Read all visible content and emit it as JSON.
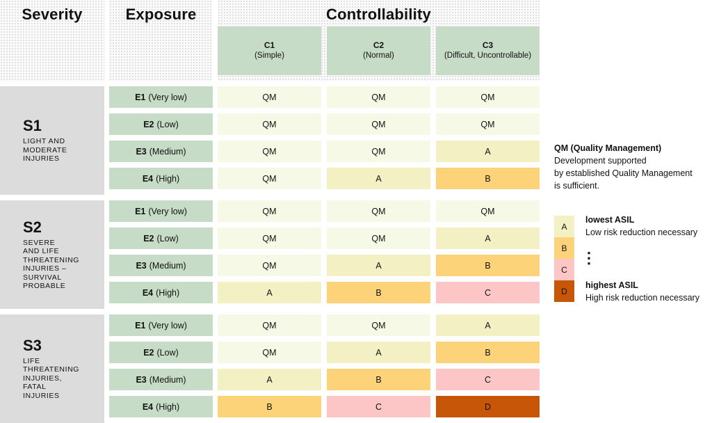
{
  "headers": {
    "severity": "Severity",
    "exposure": "Exposure",
    "controllability": "Controllability"
  },
  "controllability": [
    {
      "code": "C1",
      "label": "(Simple)"
    },
    {
      "code": "C2",
      "label": "(Normal)"
    },
    {
      "code": "C3",
      "label": "(Difficult, Uncontrollable)"
    }
  ],
  "severity_groups": [
    {
      "code": "S1",
      "description": "LIGHT AND\nMODERATE\nINJURIES",
      "rows": [
        {
          "code": "E1",
          "label": "(Very low)",
          "values": [
            "QM",
            "QM",
            "QM"
          ]
        },
        {
          "code": "E2",
          "label": "(Low)",
          "values": [
            "QM",
            "QM",
            "QM"
          ]
        },
        {
          "code": "E3",
          "label": "(Medium)",
          "values": [
            "QM",
            "QM",
            "A"
          ]
        },
        {
          "code": "E4",
          "label": "(High)",
          "values": [
            "QM",
            "A",
            "B"
          ]
        }
      ]
    },
    {
      "code": "S2",
      "description": "SEVERE\nAND LIFE\nTHREATENING\nINJURIES –\nSURVIVAL\nPROBABLE",
      "rows": [
        {
          "code": "E1",
          "label": "(Very low)",
          "values": [
            "QM",
            "QM",
            "QM"
          ]
        },
        {
          "code": "E2",
          "label": "(Low)",
          "values": [
            "QM",
            "QM",
            "A"
          ]
        },
        {
          "code": "E3",
          "label": "(Medium)",
          "values": [
            "QM",
            "A",
            "B"
          ]
        },
        {
          "code": "E4",
          "label": "(High)",
          "values": [
            "A",
            "B",
            "C"
          ]
        }
      ]
    },
    {
      "code": "S3",
      "description": "LIFE\nTHREATENING\nINJURIES,\nFATAL\nINJURIES",
      "rows": [
        {
          "code": "E1",
          "label": "(Very low)",
          "values": [
            "QM",
            "QM",
            "A"
          ]
        },
        {
          "code": "E2",
          "label": "(Low)",
          "values": [
            "QM",
            "A",
            "B"
          ]
        },
        {
          "code": "E3",
          "label": "(Medium)",
          "values": [
            "A",
            "B",
            "C"
          ]
        },
        {
          "code": "E4",
          "label": "(High)",
          "values": [
            "B",
            "C",
            "D"
          ]
        }
      ]
    }
  ],
  "legend": {
    "qm_title": "QM (Quality Management)",
    "qm_lines": [
      "Development supported",
      "by established Quality Management",
      "is sufficient."
    ],
    "levels": [
      "A",
      "B",
      "C",
      "D"
    ],
    "lowest_title": "lowest ASIL",
    "lowest_desc": "Low risk reduction necessary",
    "ellipsis": "⋮",
    "highest_title": "highest ASIL",
    "highest_desc": "High risk reduction necessary"
  },
  "colors": {
    "QM": "#f6f9e6",
    "A": "#f3f1c4",
    "B": "#fdd37a",
    "C": "#fdc6c6",
    "D": "#c75609",
    "header_green": "#c6dcc6",
    "severity_gray": "#dcdcdc"
  }
}
